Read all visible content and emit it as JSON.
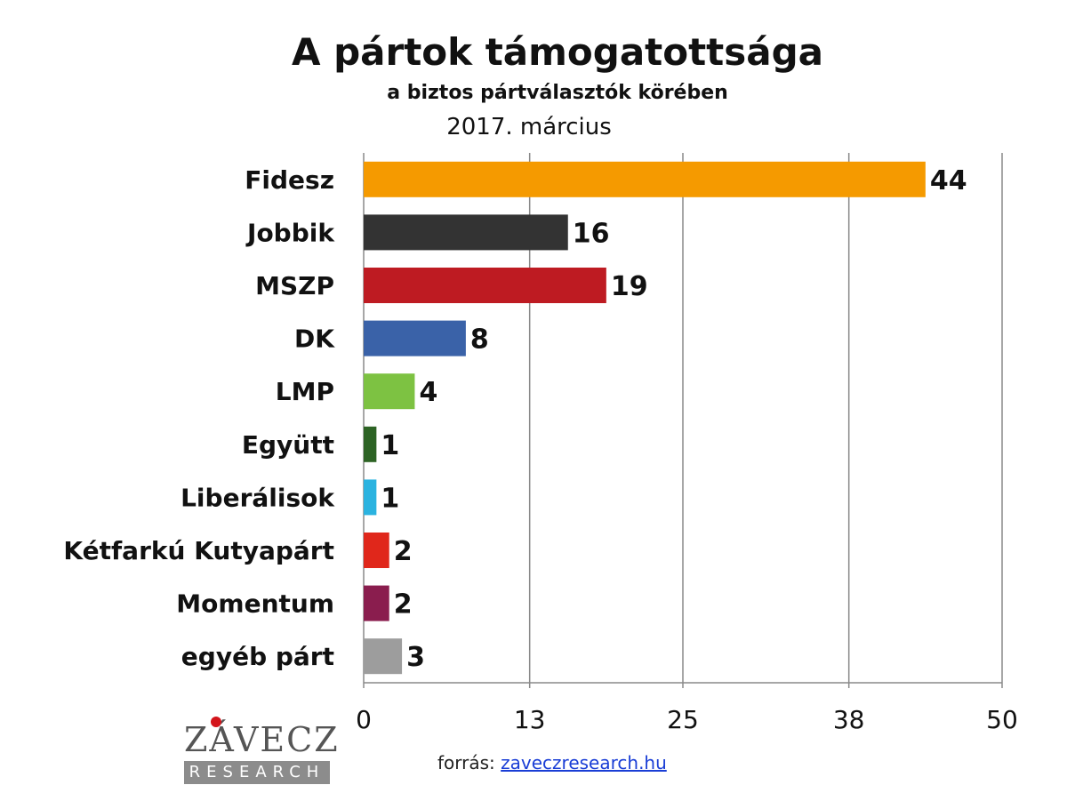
{
  "chart_data": {
    "type": "bar",
    "orientation": "horizontal",
    "title": "A pártok támogatottsága",
    "subtitle": "a biztos pártválasztók körében",
    "date": "2017. március",
    "categories": [
      "Fidesz",
      "Jobbik",
      "MSZP",
      "DK",
      "LMP",
      "Együtt",
      "Liberálisok",
      "Kétfarkú Kutyapárt",
      "Momentum",
      "egyéb párt"
    ],
    "values": [
      44,
      16,
      19,
      8,
      4,
      1,
      1,
      2,
      2,
      3
    ],
    "colors": [
      "#f59a00",
      "#333333",
      "#be1b22",
      "#3a62a8",
      "#7dc242",
      "#2d6324",
      "#2bb3e0",
      "#e0271b",
      "#8a1d4e",
      "#9d9d9d"
    ],
    "xlim": [
      0,
      50
    ],
    "xticks": [
      0,
      13,
      25,
      38,
      50
    ],
    "xtick_labels": [
      "0",
      "13",
      "25",
      "38",
      "50"
    ],
    "grid": true
  },
  "logo": {
    "name": "ZÁVECZ",
    "tagline": "RESEARCH"
  },
  "source": {
    "label": "forrás:",
    "link": "zaveczresearch.hu"
  }
}
